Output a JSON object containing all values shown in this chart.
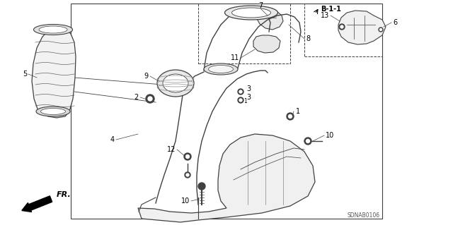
{
  "bg_color": "#ffffff",
  "fig_width": 6.4,
  "fig_height": 3.19,
  "dpi": 100,
  "diagram_code": "SDNAB0106",
  "label_fontsize": 7,
  "gray": "#404040",
  "lgray": "#909090"
}
